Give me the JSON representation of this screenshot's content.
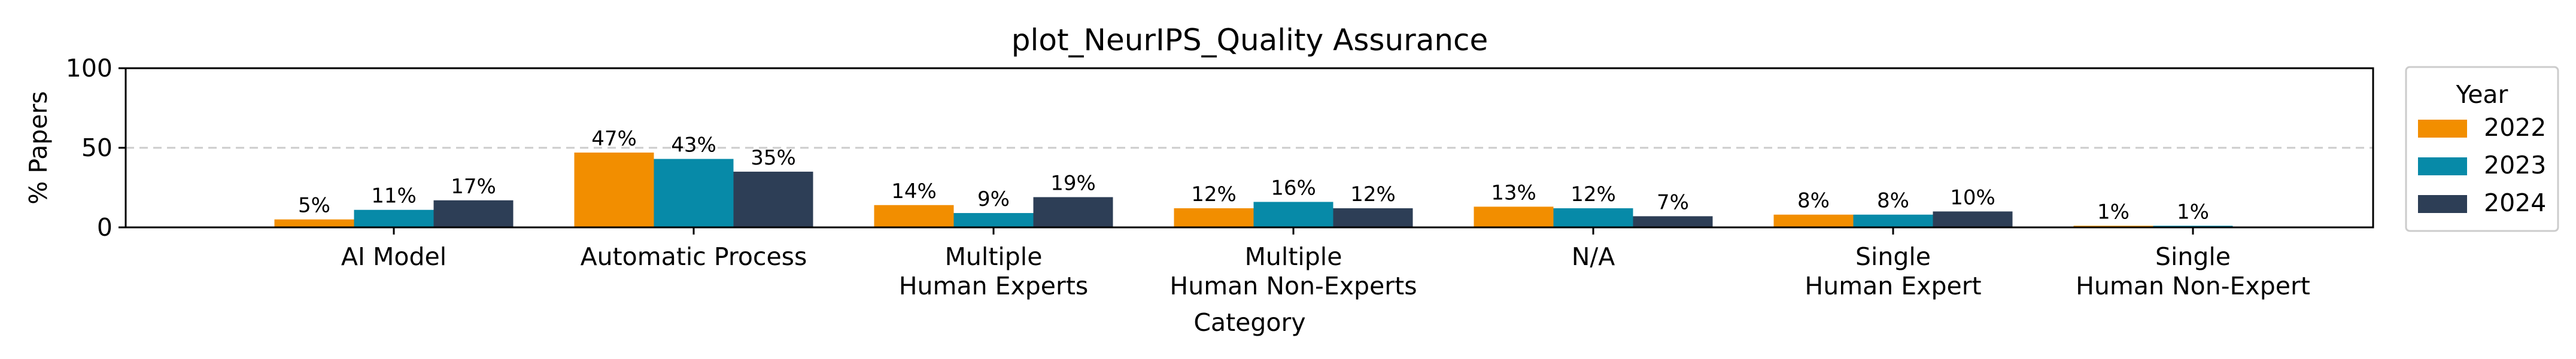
{
  "chart_data": {
    "type": "bar",
    "title": "plot_NeurIPS_Quality Assurance",
    "xlabel": "Category",
    "ylabel": "% Papers",
    "ylim": [
      0,
      100
    ],
    "yticks": [
      "0",
      "50",
      "100"
    ],
    "grid": "dashed horizontal at 50",
    "categories": [
      [
        "AI Model"
      ],
      [
        "Automatic Process"
      ],
      [
        "Multiple",
        "Human Experts"
      ],
      [
        "Multiple",
        "Human Non-Experts"
      ],
      [
        "N/A"
      ],
      [
        "Single",
        "Human Expert"
      ],
      [
        "Single",
        "Human Non-Expert"
      ]
    ],
    "series": [
      {
        "name": "2022",
        "color": "#F28E00",
        "values": [
          5,
          47,
          14,
          12,
          13,
          8,
          1
        ],
        "labels": [
          "5%",
          "47%",
          "14%",
          "12%",
          "13%",
          "8%",
          "1%"
        ]
      },
      {
        "name": "2023",
        "color": "#078AA8",
        "values": [
          11,
          43,
          9,
          16,
          12,
          8,
          1
        ],
        "labels": [
          "11%",
          "43%",
          "9%",
          "16%",
          "12%",
          "8%",
          "1%"
        ]
      },
      {
        "name": "2024",
        "color": "#2D3E56",
        "values": [
          17,
          35,
          19,
          12,
          7,
          10,
          0
        ],
        "labels": [
          "17%",
          "35%",
          "19%",
          "12%",
          "7%",
          "10%",
          ""
        ]
      }
    ],
    "legend": {
      "title": "Year",
      "position": "outside-right"
    }
  }
}
